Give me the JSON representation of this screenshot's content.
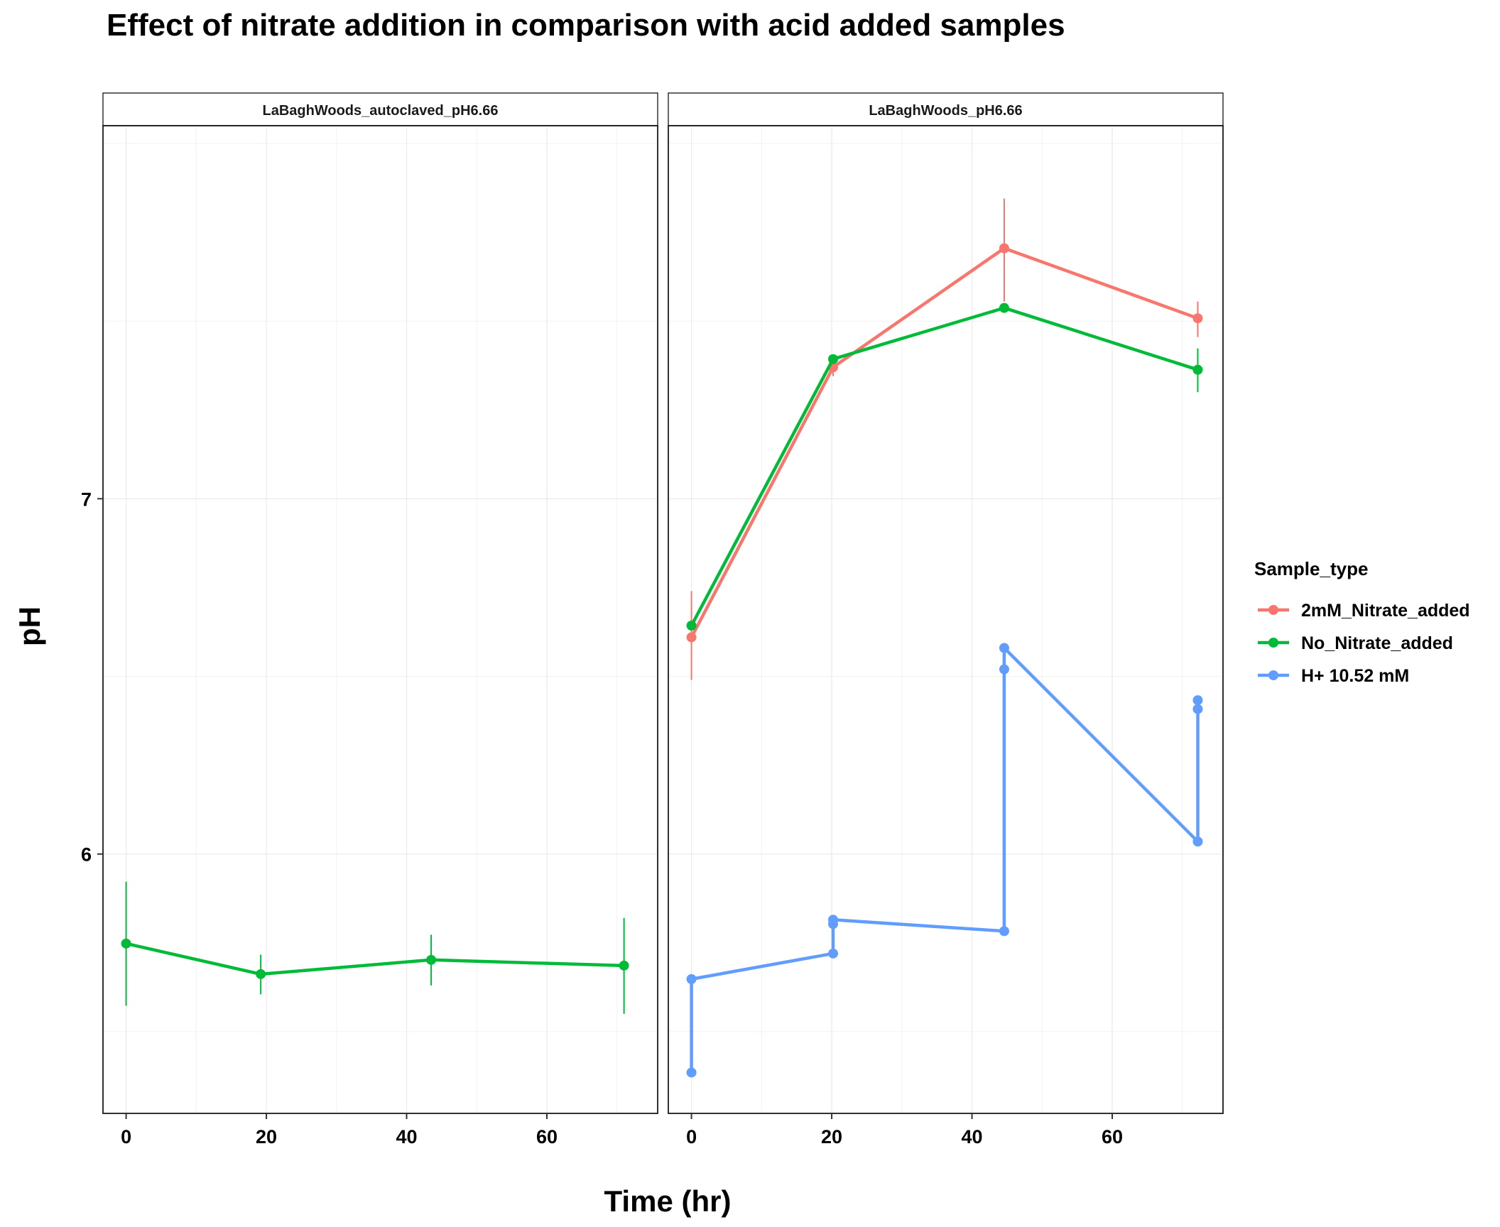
{
  "chart_data": {
    "type": "line",
    "title": "Effect of nitrate addition in comparison with acid added samples",
    "xlabel": "Time (hr)",
    "ylabel": "pH",
    "xlim": [
      -3.3,
      75.8
    ],
    "ylim": [
      5.27,
      8.05
    ],
    "x_ticks": [
      0,
      20,
      40,
      60
    ],
    "x_tick_labels": [
      "0",
      "20",
      "40",
      "60"
    ],
    "y_ticks": [
      6,
      7
    ],
    "y_tick_labels": [
      "6",
      "7"
    ],
    "legend": {
      "title": "Sample_type",
      "placement": "right",
      "entries": [
        {
          "label": "2mM_Nitrate_added",
          "color": "#F8766D"
        },
        {
          "label": "No_Nitrate_added",
          "color": "#00BA38"
        },
        {
          "label": "H+ 10.52 mM",
          "color": "#619CFF"
        }
      ]
    },
    "panels": [
      {
        "strip": "LaBaghWoods_autoclaved_pH6.66",
        "series": [
          {
            "name": "No_Nitrate_added",
            "color": "#00BA38",
            "x": [
              0,
              19.2,
              43.5,
              71
            ],
            "y": [
              5.748,
              5.662,
              5.702,
              5.686
            ],
            "err_lo": [
              5.573,
              5.605,
              5.63,
              5.55
            ],
            "err_hi": [
              5.922,
              5.717,
              5.773,
              5.82
            ]
          }
        ]
      },
      {
        "strip": "LaBaghWoods_pH6.66",
        "series": [
          {
            "name": "2mM_Nitrate_added",
            "color": "#F8766D",
            "x": [
              0,
              20.2,
              44.6,
              72.2
            ],
            "y": [
              6.61,
              7.37,
              7.705,
              7.508
            ],
            "err_lo": [
              6.49,
              7.345,
              7.555,
              7.455
            ],
            "err_hi": [
              6.74,
              7.39,
              7.845,
              7.555
            ]
          },
          {
            "name": "No_Nitrate_added",
            "color": "#00BA38",
            "x": [
              0,
              20.2,
              44.6,
              72.2
            ],
            "y": [
              6.643,
              7.393,
              7.537,
              7.363
            ],
            "err_lo": [
              6.633,
              7.383,
              7.527,
              7.3
            ],
            "err_hi": [
              6.653,
              7.403,
              7.547,
              7.423
            ]
          },
          {
            "name": "H+ 10.52 mM",
            "color": "#619CFF",
            "x": [
              0,
              0,
              20.2,
              20.2,
              20.2,
              44.6,
              44.6,
              44.6,
              72.2,
              72.2,
              72.2
            ],
            "y": [
              5.385,
              5.648,
              5.72,
              5.803,
              5.815,
              5.783,
              6.52,
              6.58,
              6.035,
              6.408,
              6.433
            ]
          }
        ]
      }
    ]
  }
}
